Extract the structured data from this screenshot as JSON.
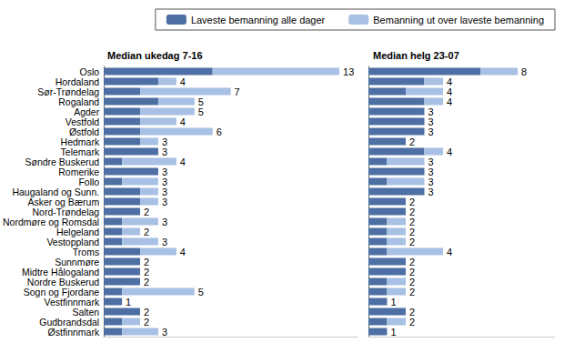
{
  "chart_data": [
    {
      "type": "bar",
      "title": "Median ukedag 7-16",
      "orientation": "horizontal",
      "stacked": true,
      "tick_labels": "y",
      "legend": "top-right",
      "data_labels": true,
      "categories": [
        "Oslo",
        "Hordaland",
        "Sør-Trøndelag",
        "Rogaland",
        "Agder",
        "Vestfold",
        "Østfold",
        "Hedmark",
        "Telemark",
        "Søndre Buskerud",
        "Romerike",
        "Follo",
        "Haugaland og Sunn.",
        "Asker og Bærum",
        "Nord-Trøndelag",
        "Nordmøre og Romsdal",
        "Helgeland",
        "Vestoppland",
        "Troms",
        "Sunnmøre",
        "Midtre Hålogaland",
        "Nordre Buskerud",
        "Sogn og Fjordane",
        "Vestfinnmark",
        "Salten",
        "Gudbrandsdal",
        "Østfinnmark"
      ],
      "series": [
        {
          "name": "Laveste bemanning alle dager",
          "color": "#4d6fa3",
          "values": [
            6,
            3,
            2,
            3,
            2,
            2,
            2,
            2,
            3,
            1,
            3,
            1,
            2,
            2,
            2,
            1,
            1,
            1,
            2,
            2,
            2,
            2,
            1,
            1,
            2,
            1,
            1
          ]
        },
        {
          "name": "Bemanning ut over laveste bemanning",
          "color": "#a7c0e3",
          "values": [
            7,
            1,
            5,
            2,
            3,
            2,
            4,
            1,
            0,
            3,
            0,
            2,
            1,
            1,
            0,
            2,
            1,
            2,
            2,
            0,
            0,
            0,
            4,
            0,
            0,
            1,
            2
          ]
        }
      ],
      "totals": [
        13,
        4,
        7,
        5,
        5,
        4,
        6,
        3,
        3,
        4,
        3,
        3,
        3,
        3,
        2,
        3,
        2,
        3,
        4,
        2,
        2,
        2,
        5,
        1,
        2,
        2,
        3
      ],
      "xlim": [
        0,
        14
      ]
    },
    {
      "type": "bar",
      "title": "Median helg 23-07",
      "orientation": "horizontal",
      "stacked": true,
      "tick_labels": false,
      "data_labels": true,
      "categories": [
        "Oslo",
        "Hordaland",
        "Sør-Trøndelag",
        "Rogaland",
        "Agder",
        "Vestfold",
        "Østfold",
        "Hedmark",
        "Telemark",
        "Søndre Buskerud",
        "Romerike",
        "Follo",
        "Haugaland og Sunn.",
        "Asker og Bærum",
        "Nord-Trøndelag",
        "Nordmøre og Romsdal",
        "Helgeland",
        "Vestoppland",
        "Troms",
        "Sunnmøre",
        "Midtre Hålogaland",
        "Nordre Buskerud",
        "Sogn og Fjordane",
        "Vestfinnmark",
        "Salten",
        "Gudbrandsdal",
        "Østfinnmark"
      ],
      "series": [
        {
          "name": "Laveste bemanning alle dager",
          "color": "#4d6fa3",
          "values": [
            6,
            3,
            2,
            3,
            3,
            3,
            3,
            2,
            3,
            1,
            3,
            1,
            3,
            2,
            2,
            1,
            1,
            1,
            1,
            2,
            2,
            1,
            1,
            1,
            2,
            1,
            1
          ]
        },
        {
          "name": "Bemanning ut over laveste bemanning",
          "color": "#a7c0e3",
          "values": [
            2,
            1,
            2,
            1,
            0,
            0,
            0,
            0,
            1,
            2,
            0,
            2,
            0,
            0,
            0,
            1,
            1,
            1,
            3,
            0,
            0,
            1,
            1,
            0,
            0,
            1,
            0
          ]
        }
      ],
      "totals": [
        8,
        4,
        4,
        4,
        3,
        3,
        3,
        2,
        4,
        3,
        3,
        3,
        3,
        2,
        2,
        2,
        2,
        2,
        4,
        2,
        2,
        2,
        2,
        1,
        2,
        2,
        1
      ],
      "xlim": [
        0,
        10
      ]
    }
  ]
}
